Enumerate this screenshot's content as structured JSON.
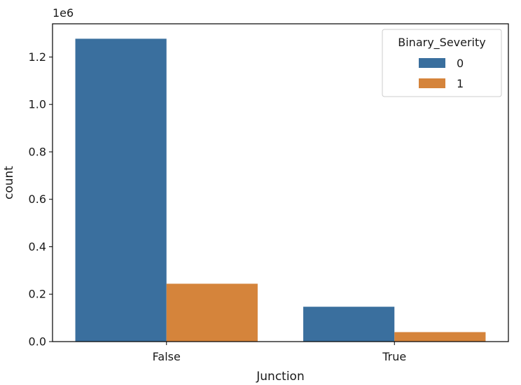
{
  "chart_data": {
    "type": "bar",
    "title": "",
    "xlabel": "Junction",
    "ylabel": "count",
    "y_offset_label": "1e6",
    "y_scale_factor": 1000000,
    "ylim": [
      0,
      1.34
    ],
    "yticks": [
      0.0,
      0.2,
      0.4,
      0.6,
      0.8,
      1.0,
      1.2
    ],
    "ytick_labels": [
      "0.0",
      "0.2",
      "0.4",
      "0.6",
      "0.8",
      "1.0",
      "1.2"
    ],
    "categories": [
      "False",
      "True"
    ],
    "legend": {
      "title": "Binary_Severity",
      "position": "top-right"
    },
    "series": [
      {
        "name": "0",
        "color": "#3a6f9e",
        "values": [
          1.277,
          0.147
        ]
      },
      {
        "name": "1",
        "color": "#d5843b",
        "values": [
          0.244,
          0.04
        ]
      }
    ],
    "grid": false
  }
}
